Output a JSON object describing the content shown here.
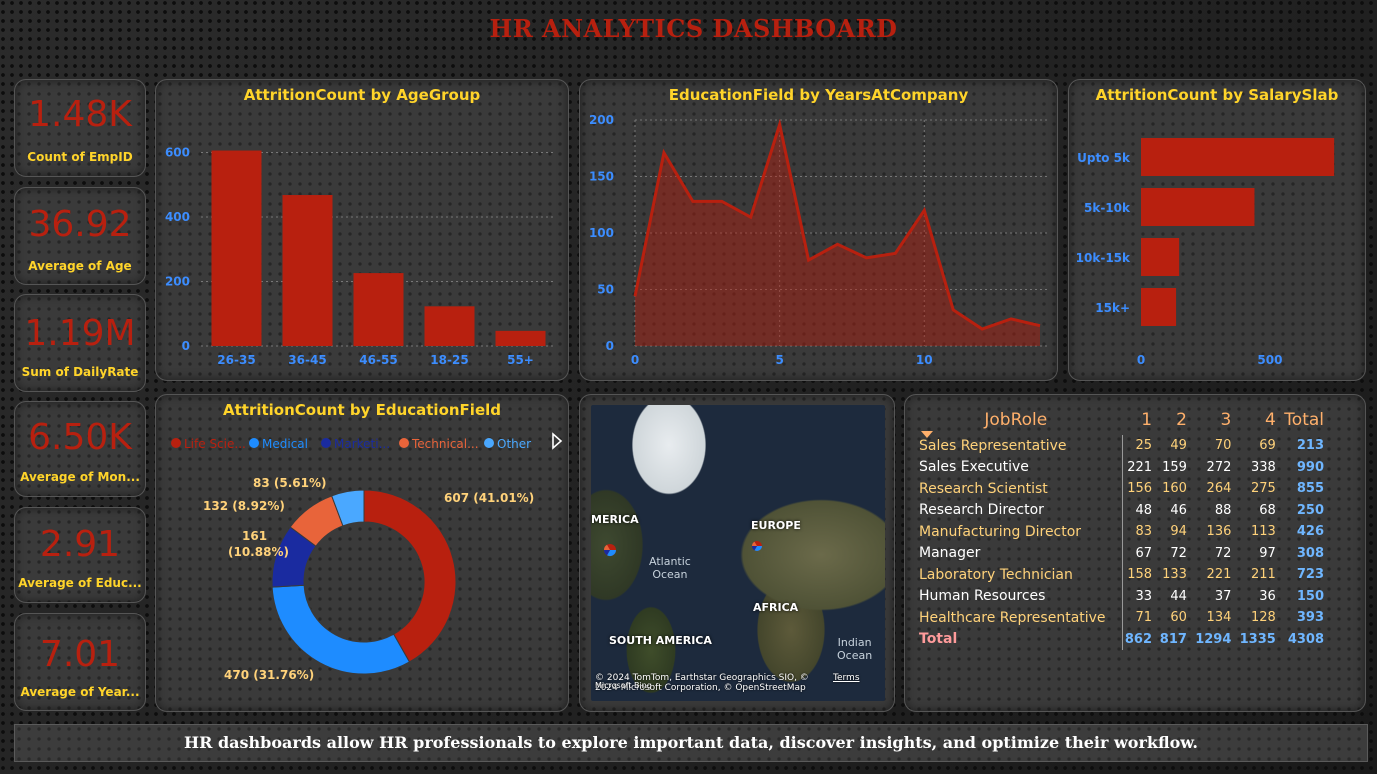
{
  "title": "HR ANALYTICS DASHBOARD",
  "kpis": [
    {
      "value": "1.48K",
      "label": "Count of EmpID"
    },
    {
      "value": "36.92",
      "label": "Average of Age"
    },
    {
      "value": "1.19M",
      "label": "Sum of DailyRate"
    },
    {
      "value": "6.50K",
      "label": "Average of Mon..."
    },
    {
      "value": "2.91",
      "label": "Average of Educ..."
    },
    {
      "value": "7.01",
      "label": "Average of Year..."
    }
  ],
  "colors": {
    "accent_red": "#b8200f",
    "title_yellow": "#ffd42a",
    "axis_blue": "#3c8dff"
  },
  "chart_data": [
    {
      "type": "bar",
      "title": "AttritionCount by AgeGroup",
      "categories": [
        "26-35",
        "36-45",
        "46-55",
        "18-25",
        "55+"
      ],
      "values": [
        606,
        468,
        226,
        123,
        47
      ],
      "yticks": [
        "0",
        "200",
        "400",
        "600"
      ],
      "ylim": [
        0,
        620
      ],
      "grid": true
    },
    {
      "type": "area",
      "title": "EducationField by YearsAtCompany",
      "x": [
        0,
        1,
        2,
        3,
        4,
        5,
        6,
        7,
        8,
        9,
        10,
        11,
        12,
        13,
        14
      ],
      "values": [
        44,
        171,
        128,
        128,
        114,
        196,
        76,
        90,
        78,
        82,
        120,
        32,
        15,
        24,
        18
      ],
      "xticks": [
        "0",
        "5",
        "10"
      ],
      "yticks": [
        "0",
        "50",
        "100",
        "150",
        "200"
      ],
      "ylim": [
        0,
        200
      ],
      "xlim": [
        0,
        14
      ],
      "grid": true
    },
    {
      "type": "bar",
      "orientation": "horizontal",
      "title": "AttritionCount by SalarySlab",
      "categories": [
        "Upto 5k",
        "5k-10k",
        "10k-15k",
        "15k+"
      ],
      "values": [
        749,
        440,
        148,
        136
      ],
      "xticks": [
        "0",
        "500"
      ],
      "xlim": [
        0,
        760
      ]
    },
    {
      "type": "pie",
      "title": "AttritionCount by EducationField",
      "legend_position": "top",
      "legend": [
        {
          "name": "Life Scie...",
          "color": "#b8200f"
        },
        {
          "name": "Medical",
          "color": "#1e8cff"
        },
        {
          "name": "Marketi...",
          "color": "#1a2ba0"
        },
        {
          "name": "Technical...",
          "color": "#e8643a"
        },
        {
          "name": "Other",
          "color": "#4aa8ff"
        }
      ],
      "slices": [
        {
          "value": 607,
          "label": "607 (41.01%)",
          "color": "#b8200f"
        },
        {
          "value": 470,
          "label": "470 (31.76%)",
          "color": "#1e8cff"
        },
        {
          "value": 161,
          "label": "161 (10.88%)",
          "color": "#1a2ba0"
        },
        {
          "value": 132,
          "label": "132 (8.92%)",
          "color": "#e8643a"
        },
        {
          "value": 83,
          "label": "83 (5.61%)",
          "color": "#4aa8ff"
        }
      ]
    },
    {
      "type": "table",
      "headers": [
        "JobRole",
        "1",
        "2",
        "3",
        "4",
        "Total"
      ],
      "rows": [
        [
          "Sales Representative",
          "25",
          "49",
          "70",
          "69",
          "213"
        ],
        [
          "Sales Executive",
          "221",
          "159",
          "272",
          "338",
          "990"
        ],
        [
          "Research Scientist",
          "156",
          "160",
          "264",
          "275",
          "855"
        ],
        [
          "Research Director",
          "48",
          "46",
          "88",
          "68",
          "250"
        ],
        [
          "Manufacturing Director",
          "83",
          "94",
          "136",
          "113",
          "426"
        ],
        [
          "Manager",
          "67",
          "72",
          "72",
          "97",
          "308"
        ],
        [
          "Laboratory Technician",
          "158",
          "133",
          "221",
          "211",
          "723"
        ],
        [
          "Human Resources",
          "33",
          "44",
          "37",
          "36",
          "150"
        ],
        [
          "Healthcare Representative",
          "71",
          "60",
          "134",
          "128",
          "393"
        ]
      ],
      "total": [
        "Total",
        "862",
        "817",
        "1294",
        "1335",
        "4308"
      ]
    }
  ],
  "map": {
    "labels": {
      "america": "MERICA",
      "europe": "EUROPE",
      "africa": "AFRICA",
      "south_america": "SOUTH AMERICA",
      "atlantic": "Atlantic\nOcean",
      "indian": "Indian\nOcean"
    },
    "attribution": "© 2024 TomTom, Earthstar Geographics SIO, © 2024 Microsoft Corporation, © OpenStreetMap",
    "terms": "Terms",
    "bing": "Microsoft Bing"
  },
  "footer": "HR dashboards allow HR professionals to explore important data, discover insights, and optimize their workflow."
}
